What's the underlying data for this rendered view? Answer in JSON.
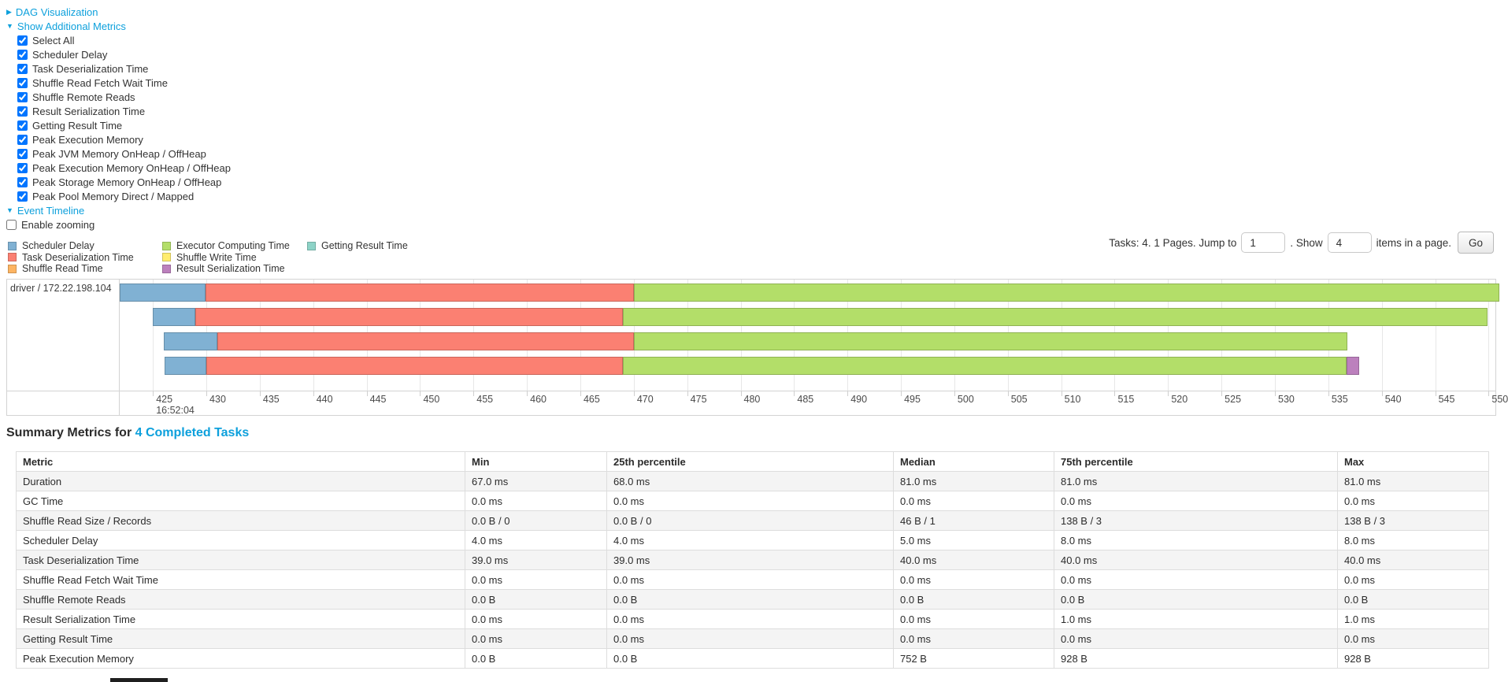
{
  "colors": {
    "link": "#0da0dc",
    "scheduler_delay": "#80B1D3",
    "task_deserialization": "#FB8072",
    "shuffle_read": "#FDB462",
    "executor_computing": "#B3DE69",
    "shuffle_write": "#FFED6F",
    "result_serialization": "#BC80BD",
    "getting_result": "#8DD3C7"
  },
  "icons": {
    "caret_right": "▶",
    "caret_down": "▼"
  },
  "toggles": {
    "dag": "DAG Visualization",
    "additional_metrics": "Show Additional Metrics",
    "event_timeline": "Event Timeline"
  },
  "metrics_panel": {
    "checked": true,
    "items": [
      "Select All",
      "Scheduler Delay",
      "Task Deserialization Time",
      "Shuffle Read Fetch Wait Time",
      "Shuffle Remote Reads",
      "Result Serialization Time",
      "Getting Result Time",
      "Peak Execution Memory",
      "Peak JVM Memory OnHeap / OffHeap",
      "Peak Execution Memory OnHeap / OffHeap",
      "Peak Storage Memory OnHeap / OffHeap",
      "Peak Pool Memory Direct / Mapped"
    ]
  },
  "enable_zooming": {
    "label": "Enable zooming",
    "checked": false
  },
  "legend": {
    "columns": [
      [
        {
          "key": "scheduler_delay",
          "label": "Scheduler Delay"
        },
        {
          "key": "task_deserialization",
          "label": "Task Deserialization Time"
        },
        {
          "key": "shuffle_read",
          "label": "Shuffle Read Time"
        }
      ],
      [
        {
          "key": "executor_computing",
          "label": "Executor Computing Time"
        },
        {
          "key": "shuffle_write",
          "label": "Shuffle Write Time"
        },
        {
          "key": "result_serialization",
          "label": "Result Serialization Time"
        }
      ],
      [
        {
          "key": "getting_result",
          "label": "Getting Result Time"
        }
      ]
    ]
  },
  "pagination": {
    "prefix": "Tasks: 4. 1 Pages. Jump to",
    "jump_value": "1",
    "mid": ". Show",
    "show_value": "4",
    "suffix": "items in a page.",
    "go_label": "Go"
  },
  "chart_data": {
    "type": "timeline",
    "executor_label": "driver / 172.22.198.104",
    "time_label": "16:52:04",
    "window": {
      "start": 421.89,
      "end": 550.78
    },
    "ticks": [
      425,
      430,
      435,
      440,
      445,
      450,
      455,
      460,
      465,
      470,
      475,
      480,
      485,
      490,
      495,
      500,
      505,
      510,
      515,
      520,
      525,
      530,
      535,
      540,
      545,
      550
    ],
    "row_tops": [
      5,
      36,
      67,
      98
    ],
    "tasks": [
      {
        "segments": [
          {
            "metric": "scheduler_delay",
            "from": 421.5,
            "to": 429.9
          },
          {
            "metric": "task_deserialization",
            "from": 429.9,
            "to": 470.0
          },
          {
            "metric": "executor_computing",
            "from": 470.0,
            "to": 551.2
          }
        ]
      },
      {
        "segments": [
          {
            "metric": "scheduler_delay",
            "from": 425.0,
            "to": 429.0
          },
          {
            "metric": "task_deserialization",
            "from": 429.0,
            "to": 469.0
          },
          {
            "metric": "executor_computing",
            "from": 469.0,
            "to": 549.9
          }
        ]
      },
      {
        "segments": [
          {
            "metric": "scheduler_delay",
            "from": 426.0,
            "to": 431.0
          },
          {
            "metric": "task_deserialization",
            "from": 431.0,
            "to": 470.0
          },
          {
            "metric": "executor_computing",
            "from": 470.0,
            "to": 536.8
          }
        ]
      },
      {
        "segments": [
          {
            "metric": "scheduler_delay",
            "from": 426.1,
            "to": 430.0
          },
          {
            "metric": "task_deserialization",
            "from": 430.0,
            "to": 469.0
          },
          {
            "metric": "executor_computing",
            "from": 469.0,
            "to": 536.7
          },
          {
            "metric": "result_serialization",
            "from": 536.7,
            "to": 537.9
          }
        ]
      }
    ]
  },
  "summary": {
    "title_prefix": "Summary Metrics for ",
    "title_link": "4 Completed Tasks",
    "columns": [
      "Metric",
      "Min",
      "25th percentile",
      "Median",
      "75th percentile",
      "Max"
    ],
    "rows": [
      [
        "Duration",
        "67.0 ms",
        "68.0 ms",
        "81.0 ms",
        "81.0 ms",
        "81.0 ms"
      ],
      [
        "GC Time",
        "0.0 ms",
        "0.0 ms",
        "0.0 ms",
        "0.0 ms",
        "0.0 ms"
      ],
      [
        "Shuffle Read Size / Records",
        "0.0 B / 0",
        "0.0 B / 0",
        "46 B / 1",
        "138 B / 3",
        "138 B / 3"
      ],
      [
        "Scheduler Delay",
        "4.0 ms",
        "4.0 ms",
        "5.0 ms",
        "8.0 ms",
        "8.0 ms"
      ],
      [
        "Task Deserialization Time",
        "39.0 ms",
        "39.0 ms",
        "40.0 ms",
        "40.0 ms",
        "40.0 ms"
      ],
      [
        "Shuffle Read Fetch Wait Time",
        "0.0 ms",
        "0.0 ms",
        "0.0 ms",
        "0.0 ms",
        "0.0 ms"
      ],
      [
        "Shuffle Remote Reads",
        "0.0 B",
        "0.0 B",
        "0.0 B",
        "0.0 B",
        "0.0 B"
      ],
      [
        "Result Serialization Time",
        "0.0 ms",
        "0.0 ms",
        "0.0 ms",
        "1.0 ms",
        "1.0 ms"
      ],
      [
        "Getting Result Time",
        "0.0 ms",
        "0.0 ms",
        "0.0 ms",
        "0.0 ms",
        "0.0 ms"
      ],
      [
        "Peak Execution Memory",
        "0.0 B",
        "0.0 B",
        "752 B",
        "928 B",
        "928 B"
      ]
    ]
  }
}
